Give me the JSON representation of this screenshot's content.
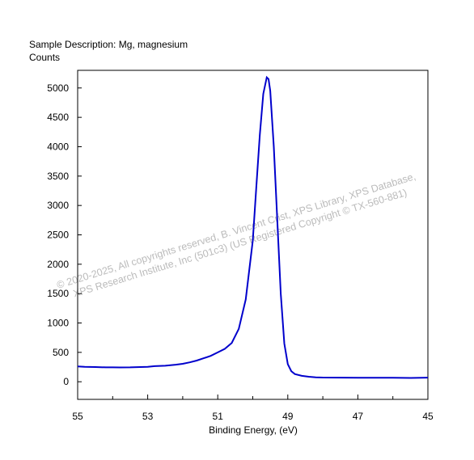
{
  "header": {
    "sample_description": "Sample Description:  Mg, magnesium",
    "ylabel": "Counts"
  },
  "watermark": {
    "line1": "© 2020-2025,  All copyrights reserved,   B. Vincent Crist,  XPS Library, XPS Database,",
    "line2": "XPS Research Institute, Inc (501c3)   (US Registered Copyright © TX-560-881)"
  },
  "colors": {
    "series": "#0000cc",
    "watermark": "#bbbbbb",
    "axis": "#000000"
  },
  "chart_data": {
    "type": "line",
    "title": "Sample Description:  Mg, magnesium",
    "xlabel": "Binding Energy, (eV)",
    "ylabel": "Counts",
    "xlim": [
      55,
      45
    ],
    "x_reversed": true,
    "ylim": [
      -300,
      5300
    ],
    "grid": false,
    "xticks": [
      55,
      53,
      51,
      49,
      47,
      45
    ],
    "xtick_labels": [
      "55",
      "53",
      "51",
      "49",
      "47",
      "45"
    ],
    "yticks": [
      0,
      500,
      1000,
      1500,
      2000,
      2500,
      3000,
      3500,
      4000,
      4500,
      5000
    ],
    "ytick_labels": [
      "0",
      "500",
      "1000",
      "1500",
      "2000",
      "2500",
      "3000",
      "3500",
      "4000",
      "4500",
      "5000"
    ],
    "series": [
      {
        "points": [
          [
            55.0,
            260
          ],
          [
            54.8,
            255
          ],
          [
            54.5,
            250
          ],
          [
            54.2,
            245
          ],
          [
            54.0,
            245
          ],
          [
            53.8,
            243
          ],
          [
            53.5,
            245
          ],
          [
            53.2,
            250
          ],
          [
            53.0,
            255
          ],
          [
            52.8,
            265
          ],
          [
            52.5,
            272
          ],
          [
            52.2,
            290
          ],
          [
            52.0,
            305
          ],
          [
            51.8,
            330
          ],
          [
            51.6,
            360
          ],
          [
            51.4,
            400
          ],
          [
            51.2,
            440
          ],
          [
            51.0,
            500
          ],
          [
            50.8,
            560
          ],
          [
            50.6,
            660
          ],
          [
            50.4,
            900
          ],
          [
            50.2,
            1400
          ],
          [
            50.0,
            2400
          ],
          [
            49.9,
            3300
          ],
          [
            49.8,
            4200
          ],
          [
            49.7,
            4900
          ],
          [
            49.6,
            5180
          ],
          [
            49.55,
            5150
          ],
          [
            49.5,
            4950
          ],
          [
            49.4,
            4000
          ],
          [
            49.3,
            2750
          ],
          [
            49.2,
            1500
          ],
          [
            49.1,
            650
          ],
          [
            49.0,
            300
          ],
          [
            48.9,
            180
          ],
          [
            48.8,
            130
          ],
          [
            48.6,
            100
          ],
          [
            48.4,
            85
          ],
          [
            48.2,
            75
          ],
          [
            48.0,
            72
          ],
          [
            47.5,
            70
          ],
          [
            47.0,
            68
          ],
          [
            46.5,
            68
          ],
          [
            46.0,
            67
          ],
          [
            45.5,
            65
          ],
          [
            45.0,
            70
          ]
        ]
      }
    ]
  }
}
